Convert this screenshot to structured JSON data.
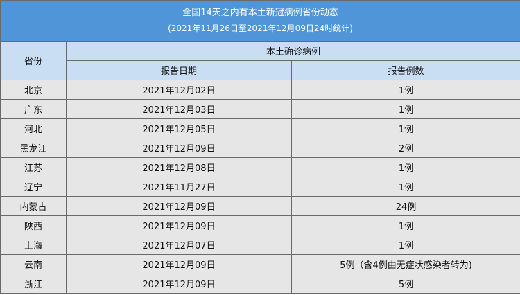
{
  "title": {
    "line1": "全国14天之内有本土新冠病例省份动态",
    "line2": "(2021年11月26日至2021年12月09日24时统计)"
  },
  "header": {
    "province": "省份",
    "group": "本土确诊病例",
    "date": "报告日期",
    "count": "报告例数"
  },
  "rows": [
    {
      "province": "北京",
      "date": "2021年12月02日",
      "count": "1例"
    },
    {
      "province": "广东",
      "date": "2021年12月03日",
      "count": "1例"
    },
    {
      "province": "河北",
      "date": "2021年12月05日",
      "count": "1例"
    },
    {
      "province": "黑龙江",
      "date": "2021年12月09日",
      "count": "2例"
    },
    {
      "province": "江苏",
      "date": "2021年12月08日",
      "count": "1例"
    },
    {
      "province": "辽宁",
      "date": "2021年11月27日",
      "count": "1例"
    },
    {
      "province": "内蒙古",
      "date": "2021年12月09日",
      "count": "24例"
    },
    {
      "province": "陕西",
      "date": "2021年12月09日",
      "count": "1例"
    },
    {
      "province": "上海",
      "date": "2021年12月07日",
      "count": "1例"
    },
    {
      "province": "云南",
      "date": "2021年12月09日",
      "count": "5例（含4例由无症状感染者转为)"
    },
    {
      "province": "浙江",
      "date": "2021年12月09日",
      "count": "5例"
    }
  ],
  "colors": {
    "title_bg": "#4f95d8",
    "header_bg": "#c9def3",
    "row_bg": "#e6e6e6",
    "border": "#6a6a6a"
  }
}
